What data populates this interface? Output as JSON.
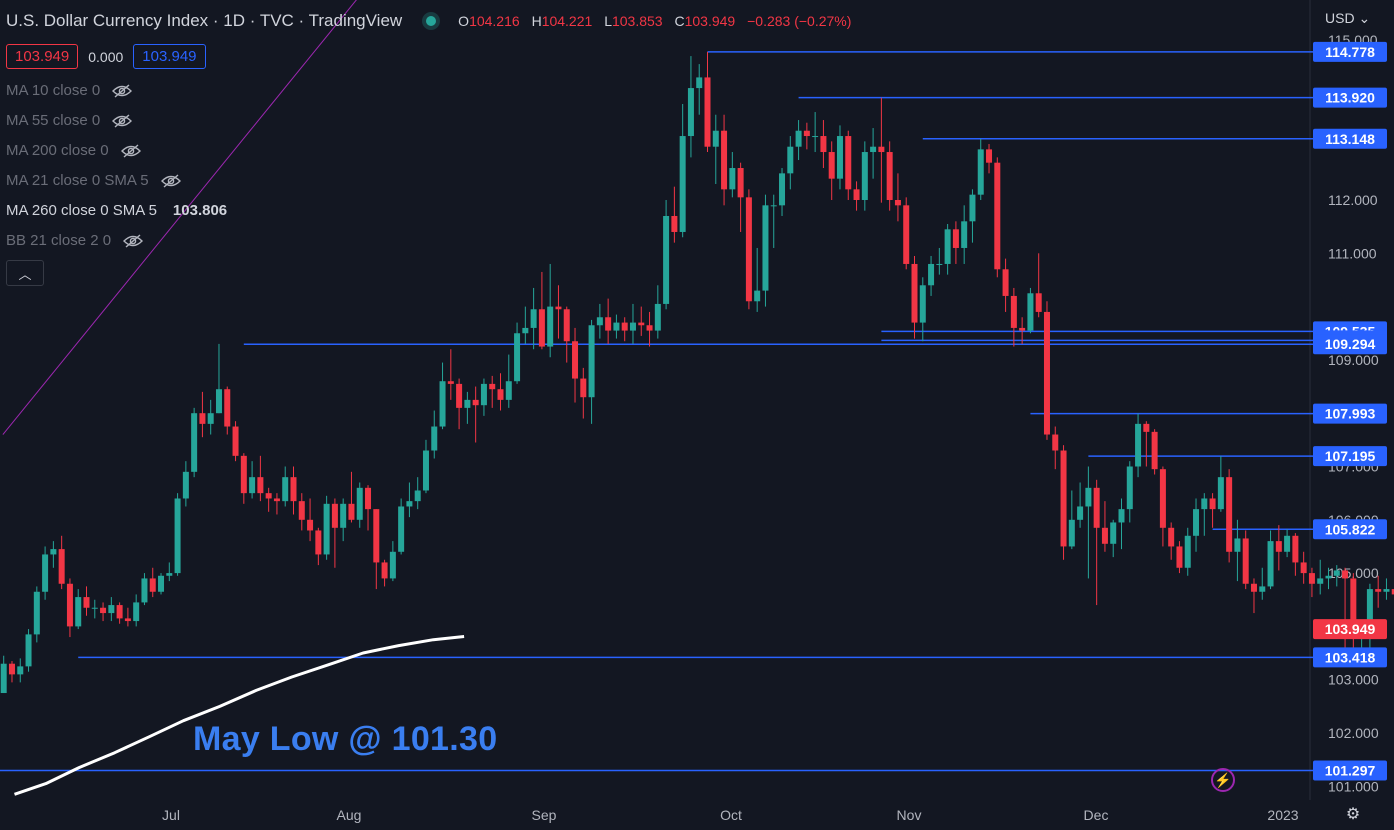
{
  "header": {
    "title": "U.S. Dollar Currency Index · 1D · TVC · TradingView",
    "ohlc": {
      "o_label": "O",
      "o": "104.216",
      "h_label": "H",
      "h": "104.221",
      "l_label": "L",
      "l": "103.853",
      "c_label": "C",
      "c": "103.949",
      "change": "−0.283 (−0.27%)"
    },
    "sell_box": "103.949",
    "spread": "0.000",
    "buy_box": "103.949",
    "currency": "USD",
    "currency_icon": "chevron-down-icon"
  },
  "indicators": [
    {
      "label": "MA 10 close 0",
      "hidden": true,
      "value": ""
    },
    {
      "label": "MA 55 close 0",
      "hidden": true,
      "value": ""
    },
    {
      "label": "MA 200 close 0",
      "hidden": true,
      "value": ""
    },
    {
      "label": "MA 21 close 0 SMA 5",
      "hidden": true,
      "value": ""
    },
    {
      "label": "MA 260 close 0 SMA 5",
      "hidden": false,
      "value": "103.806"
    },
    {
      "label": "BB 21 close 2 0",
      "hidden": true,
      "value": ""
    }
  ],
  "annotation": "May Low @ 101.30",
  "colors": {
    "background": "#131722",
    "up": "#26a69a",
    "down": "#f23645",
    "level": "#2962ff",
    "trendline": "#9c27b0",
    "ma": "#ffffff",
    "annotation": "#3a7ef0"
  },
  "chart_data": {
    "type": "candlestick",
    "currency": "USD",
    "x_ticks": [
      "Jul",
      "Aug",
      "Sep",
      "Oct",
      "Nov",
      "Dec",
      "2023"
    ],
    "y_ticks": [
      "101.000",
      "102.000",
      "103.000",
      "105.000",
      "106.000",
      "107.000",
      "109.000",
      "111.000",
      "112.000",
      "115.000"
    ],
    "ylim": [
      101.0,
      115.3
    ],
    "horizontal_levels": [
      "114.778",
      "113.920",
      "113.148",
      "109.535",
      "109.366",
      "109.294",
      "107.993",
      "107.195",
      "105.822",
      "103.418",
      "101.297"
    ],
    "last_price": "103.949",
    "candles": [
      [
        102.75,
        103.3,
        103.45,
        102.75
      ],
      [
        103.3,
        103.1,
        103.35,
        102.95
      ],
      [
        103.1,
        103.25,
        103.4,
        102.95
      ],
      [
        103.25,
        103.85,
        103.95,
        103.15
      ],
      [
        103.85,
        104.65,
        104.75,
        103.7
      ],
      [
        104.65,
        105.35,
        105.5,
        104.5
      ],
      [
        105.35,
        105.45,
        105.6,
        105.1
      ],
      [
        105.45,
        104.8,
        105.7,
        104.7
      ],
      [
        104.8,
        104.0,
        104.9,
        103.8
      ],
      [
        104.0,
        104.55,
        104.7,
        103.95
      ],
      [
        104.55,
        104.35,
        104.75,
        104.2
      ],
      [
        104.35,
        104.35,
        104.5,
        104.15
      ],
      [
        104.35,
        104.25,
        104.45,
        104.1
      ],
      [
        104.25,
        104.4,
        104.55,
        104.1
      ],
      [
        104.4,
        104.15,
        104.45,
        104.05
      ],
      [
        104.15,
        104.1,
        104.35,
        104.0
      ],
      [
        104.1,
        104.45,
        104.6,
        104.0
      ],
      [
        104.45,
        104.9,
        105.0,
        104.4
      ],
      [
        104.9,
        104.65,
        105.1,
        104.55
      ],
      [
        104.65,
        104.95,
        105.0,
        104.6
      ],
      [
        104.95,
        105.0,
        105.2,
        104.85
      ],
      [
        105.0,
        106.4,
        106.5,
        104.95
      ],
      [
        106.4,
        106.9,
        107.1,
        106.25
      ],
      [
        106.9,
        108.0,
        108.1,
        106.8
      ],
      [
        108.0,
        107.8,
        108.4,
        107.55
      ],
      [
        107.8,
        108.0,
        108.25,
        107.6
      ],
      [
        108.0,
        108.45,
        109.3,
        108.0
      ],
      [
        108.45,
        107.75,
        108.5,
        107.6
      ],
      [
        107.75,
        107.2,
        107.85,
        107.1
      ],
      [
        107.2,
        106.5,
        107.25,
        106.3
      ],
      [
        106.5,
        106.8,
        107.1,
        106.4
      ],
      [
        106.8,
        106.5,
        107.2,
        106.35
      ],
      [
        106.5,
        106.4,
        106.6,
        106.15
      ],
      [
        106.4,
        106.35,
        106.5,
        106.1
      ],
      [
        106.35,
        106.8,
        107.0,
        106.25
      ],
      [
        106.8,
        106.35,
        107.0,
        106.1
      ],
      [
        106.35,
        106.0,
        106.5,
        105.8
      ],
      [
        106.0,
        105.8,
        106.4,
        105.6
      ],
      [
        105.8,
        105.35,
        105.85,
        105.15
      ],
      [
        105.35,
        106.3,
        106.45,
        105.25
      ],
      [
        106.3,
        105.85,
        106.4,
        105.1
      ],
      [
        105.85,
        106.3,
        106.4,
        105.6
      ],
      [
        106.3,
        106.0,
        106.9,
        105.95
      ],
      [
        106.0,
        106.6,
        106.7,
        105.85
      ],
      [
        106.6,
        106.2,
        106.65,
        105.8
      ],
      [
        106.2,
        105.2,
        106.2,
        104.7
      ],
      [
        105.2,
        104.9,
        105.25,
        104.75
      ],
      [
        104.9,
        105.4,
        105.6,
        104.85
      ],
      [
        105.4,
        106.25,
        106.4,
        105.35
      ],
      [
        106.25,
        106.35,
        106.7,
        106.05
      ],
      [
        106.35,
        106.55,
        106.8,
        106.2
      ],
      [
        106.55,
        107.3,
        107.5,
        106.5
      ],
      [
        107.3,
        107.75,
        108.05,
        107.15
      ],
      [
        107.75,
        108.6,
        108.95,
        107.7
      ],
      [
        108.6,
        108.55,
        109.2,
        108.25
      ],
      [
        108.55,
        108.1,
        108.65,
        107.7
      ],
      [
        108.1,
        108.25,
        108.4,
        107.8
      ],
      [
        108.25,
        108.15,
        108.5,
        107.45
      ],
      [
        108.15,
        108.55,
        108.65,
        107.95
      ],
      [
        108.55,
        108.45,
        108.7,
        108.1
      ],
      [
        108.45,
        108.25,
        108.75,
        108.05
      ],
      [
        108.25,
        108.6,
        109.1,
        108.1
      ],
      [
        108.6,
        109.5,
        109.7,
        108.55
      ],
      [
        109.5,
        109.6,
        110.0,
        109.3
      ],
      [
        109.6,
        109.95,
        110.35,
        109.2
      ],
      [
        109.95,
        109.25,
        110.65,
        109.2
      ],
      [
        109.25,
        110.0,
        110.8,
        109.05
      ],
      [
        110.0,
        109.95,
        110.4,
        109.4
      ],
      [
        109.95,
        109.35,
        110.0,
        108.95
      ],
      [
        109.35,
        108.65,
        109.6,
        108.2
      ],
      [
        108.65,
        108.3,
        108.85,
        107.9
      ],
      [
        108.3,
        109.65,
        109.75,
        107.8
      ],
      [
        109.65,
        109.8,
        110.05,
        109.4
      ],
      [
        109.8,
        109.55,
        110.15,
        109.3
      ],
      [
        109.55,
        109.7,
        109.85,
        109.4
      ],
      [
        109.7,
        109.55,
        109.8,
        109.35
      ],
      [
        109.55,
        109.7,
        110.05,
        109.3
      ],
      [
        109.7,
        109.65,
        110.0,
        109.45
      ],
      [
        109.65,
        109.55,
        109.9,
        109.25
      ],
      [
        109.55,
        110.05,
        110.4,
        109.4
      ],
      [
        110.05,
        111.7,
        112.0,
        109.95
      ],
      [
        111.7,
        111.4,
        112.25,
        111.2
      ],
      [
        111.4,
        113.2,
        113.8,
        111.3
      ],
      [
        113.2,
        114.1,
        114.7,
        112.8
      ],
      [
        114.1,
        114.3,
        114.55,
        113.6
      ],
      [
        114.3,
        113.0,
        114.778,
        112.9
      ],
      [
        113.0,
        113.3,
        113.6,
        112.3
      ],
      [
        113.3,
        112.2,
        113.6,
        111.9
      ],
      [
        112.2,
        112.6,
        112.9,
        112.05
      ],
      [
        112.6,
        112.05,
        112.7,
        111.4
      ],
      [
        112.05,
        110.1,
        112.2,
        109.95
      ],
      [
        110.1,
        110.3,
        111.1,
        109.9
      ],
      [
        110.3,
        111.9,
        112.1,
        110.0
      ],
      [
        111.9,
        111.9,
        112.1,
        111.1
      ],
      [
        111.9,
        112.5,
        112.6,
        111.7
      ],
      [
        112.5,
        113.0,
        113.2,
        112.2
      ],
      [
        113.0,
        113.3,
        113.5,
        112.75
      ],
      [
        113.3,
        113.2,
        113.45,
        112.95
      ],
      [
        113.2,
        113.2,
        113.65,
        112.9
      ],
      [
        113.2,
        112.9,
        113.5,
        112.6
      ],
      [
        112.9,
        112.4,
        113.1,
        112.0
      ],
      [
        112.4,
        113.2,
        113.4,
        112.2
      ],
      [
        113.2,
        112.2,
        113.3,
        112.0
      ],
      [
        112.2,
        112.0,
        112.35,
        111.8
      ],
      [
        112.0,
        112.9,
        113.1,
        111.8
      ],
      [
        112.9,
        113.0,
        113.35,
        112.4
      ],
      [
        113.0,
        112.9,
        113.92,
        111.95
      ],
      [
        112.9,
        112.0,
        113.1,
        111.8
      ],
      [
        112.0,
        111.9,
        112.5,
        111.6
      ],
      [
        111.9,
        110.8,
        112.05,
        110.7
      ],
      [
        110.8,
        109.7,
        110.95,
        109.4
      ],
      [
        109.7,
        110.4,
        110.55,
        109.35
      ],
      [
        110.4,
        110.8,
        110.95,
        110.2
      ],
      [
        110.8,
        110.8,
        111.1,
        110.6
      ],
      [
        110.8,
        111.45,
        111.55,
        110.6
      ],
      [
        111.45,
        111.1,
        111.6,
        110.8
      ],
      [
        111.1,
        111.6,
        111.9,
        110.8
      ],
      [
        111.6,
        112.1,
        112.2,
        111.2
      ],
      [
        112.1,
        112.95,
        113.148,
        112.0
      ],
      [
        112.95,
        112.7,
        113.05,
        112.5
      ],
      [
        112.7,
        110.7,
        112.8,
        110.55
      ],
      [
        110.7,
        110.2,
        110.9,
        109.9
      ],
      [
        110.2,
        109.6,
        110.35,
        109.25
      ],
      [
        109.6,
        109.55,
        109.8,
        109.3
      ],
      [
        109.55,
        110.25,
        110.35,
        109.5
      ],
      [
        110.25,
        109.9,
        111.0,
        109.8
      ],
      [
        109.9,
        107.6,
        110.1,
        107.5
      ],
      [
        107.6,
        107.3,
        107.75,
        106.95
      ],
      [
        107.3,
        105.5,
        107.4,
        105.25
      ],
      [
        105.5,
        106.0,
        106.55,
        105.45
      ],
      [
        106.0,
        106.25,
        106.7,
        105.85
      ],
      [
        106.25,
        106.6,
        107.0,
        104.9
      ],
      [
        106.6,
        105.85,
        106.75,
        104.4
      ],
      [
        105.85,
        105.55,
        106.35,
        105.4
      ],
      [
        105.55,
        105.95,
        106.0,
        105.3
      ],
      [
        105.95,
        106.2,
        106.4,
        105.45
      ],
      [
        106.2,
        107.0,
        107.1,
        105.95
      ],
      [
        107.0,
        107.8,
        107.993,
        106.8
      ],
      [
        107.8,
        107.65,
        107.85,
        107.0
      ],
      [
        107.65,
        106.95,
        107.7,
        106.85
      ],
      [
        106.95,
        105.85,
        107.0,
        105.5
      ],
      [
        105.85,
        105.5,
        105.95,
        105.25
      ],
      [
        105.5,
        105.1,
        105.6,
        105.0
      ],
      [
        105.1,
        105.7,
        105.85,
        104.95
      ],
      [
        105.7,
        106.2,
        106.4,
        105.4
      ],
      [
        106.2,
        106.4,
        106.5,
        105.7
      ],
      [
        106.4,
        106.2,
        106.5,
        105.85
      ],
      [
        106.2,
        106.8,
        107.195,
        106.15
      ],
      [
        106.8,
        105.4,
        106.95,
        105.2
      ],
      [
        105.4,
        105.65,
        106.0,
        104.85
      ],
      [
        105.65,
        104.8,
        105.8,
        104.7
      ],
      [
        104.8,
        104.65,
        104.9,
        104.25
      ],
      [
        104.65,
        104.75,
        105.1,
        104.5
      ],
      [
        104.75,
        105.6,
        105.8,
        104.7
      ],
      [
        105.6,
        105.4,
        105.9,
        105.05
      ],
      [
        105.4,
        105.7,
        105.822,
        105.3
      ],
      [
        105.7,
        105.2,
        105.75,
        104.95
      ],
      [
        105.2,
        105.0,
        105.4,
        104.8
      ],
      [
        105.0,
        104.8,
        105.1,
        104.55
      ],
      [
        104.8,
        104.9,
        105.25,
        104.6
      ],
      [
        104.9,
        104.95,
        105.1,
        104.7
      ],
      [
        104.95,
        105.05,
        105.15,
        104.75
      ],
      [
        105.05,
        104.9,
        105.1,
        103.6
      ],
      [
        104.9,
        103.8,
        105.0,
        103.5
      ],
      [
        103.8,
        103.85,
        104.1,
        103.418
      ],
      [
        103.85,
        104.7,
        104.8,
        103.6
      ],
      [
        104.7,
        104.65,
        104.95,
        104.35
      ],
      [
        104.65,
        104.7,
        104.9,
        104.5
      ],
      [
        104.7,
        104.6,
        104.85,
        104.4
      ],
      [
        104.6,
        104.25,
        104.75,
        103.85
      ],
      [
        104.25,
        103.95,
        104.5,
        103.85
      ],
      [
        103.95,
        104.2,
        104.35,
        103.85
      ],
      [
        104.216,
        103.949,
        104.221,
        103.853
      ]
    ],
    "moving_average": {
      "label": "MA 260 close 0 SMA 5",
      "last_value": "103.806",
      "points": [
        [
          1.3,
          100.85
        ],
        [
          5.1,
          101.05
        ],
        [
          9.1,
          101.35
        ],
        [
          13.4,
          101.63
        ],
        [
          17.6,
          101.93
        ],
        [
          21.7,
          102.23
        ],
        [
          26.1,
          102.5
        ],
        [
          30.5,
          102.8
        ],
        [
          34.8,
          103.05
        ],
        [
          39.2,
          103.28
        ],
        [
          43.4,
          103.5
        ],
        [
          47.7,
          103.64
        ],
        [
          51.9,
          103.75
        ],
        [
          55.6,
          103.81
        ]
      ]
    },
    "trendline": {
      "points": [
        [
          -0.1,
          107.6
        ],
        [
          46.5,
          116.5
        ]
      ]
    }
  }
}
